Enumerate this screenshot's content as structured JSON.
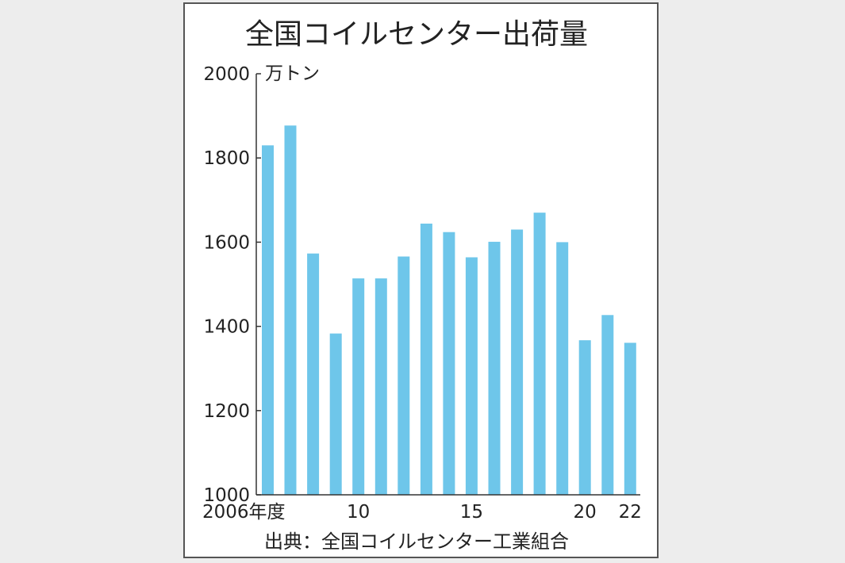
{
  "chart_data": {
    "type": "bar",
    "title": "全国コイルセンター出荷量",
    "unit": "万トン",
    "source": "出典：全国コイルセンター工業組合",
    "categories": [
      "2006",
      "2007",
      "2008",
      "2009",
      "2010",
      "2011",
      "2012",
      "2013",
      "2014",
      "2015",
      "2016",
      "2017",
      "2018",
      "2019",
      "2020",
      "2021",
      "2022"
    ],
    "values": [
      1830,
      1877,
      1573,
      1383,
      1514,
      1514,
      1566,
      1644,
      1624,
      1564,
      1601,
      1630,
      1670,
      1600,
      1367,
      1427,
      1361
    ],
    "x_tick_labels": [
      {
        "index": 0,
        "text": "2006年度"
      },
      {
        "index": 4,
        "text": "10"
      },
      {
        "index": 9,
        "text": "15"
      },
      {
        "index": 14,
        "text": "20"
      },
      {
        "index": 16,
        "text": "22"
      }
    ],
    "y_ticks": [
      2000,
      1800,
      1600,
      1400,
      1200,
      1000
    ],
    "ylim": [
      1000,
      2000
    ],
    "bar_color": "#6ec6ea",
    "grid": false,
    "legend": false
  }
}
